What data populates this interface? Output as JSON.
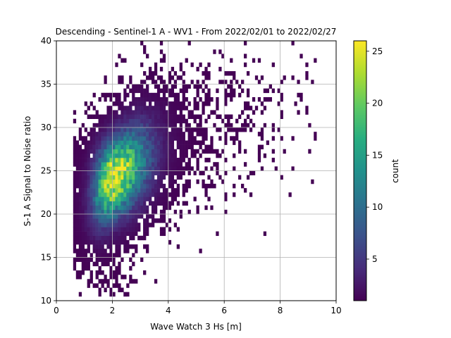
{
  "chart_data": {
    "type": "heatmap",
    "title": "Descending - Sentinel-1 A - WV1 - From 2022/02/01 to 2022/02/27",
    "xlabel": "Wave Watch 3 Hs [m]",
    "ylabel": "S-1 A Signal to Noise ratio",
    "xlim": [
      0,
      10
    ],
    "ylim": [
      10,
      40
    ],
    "xticks": [
      0,
      2,
      4,
      6,
      8,
      10
    ],
    "yticks": [
      10,
      15,
      20,
      25,
      30,
      35,
      40
    ],
    "grid": true,
    "bin_width_x": 0.1,
    "bin_width_y": 0.5,
    "colormap": "viridis",
    "colorbar": {
      "label": "count",
      "min": 1,
      "max": 26,
      "ticks": [
        5,
        10,
        15,
        20,
        25
      ]
    },
    "density_model": {
      "description_of_shape": "2D histogram of counts; core centered near Hs 2.0 m, SNR 24 with peak count ~26; cloud extends up-right to Hs ~9 m, SNR ~38",
      "peak": {
        "x": 2.0,
        "y": 24.5,
        "count": 26
      },
      "extent": {
        "x_min": 0.6,
        "x_max": 9.2,
        "y_min": 10.5,
        "y_max": 39.5
      }
    }
  }
}
